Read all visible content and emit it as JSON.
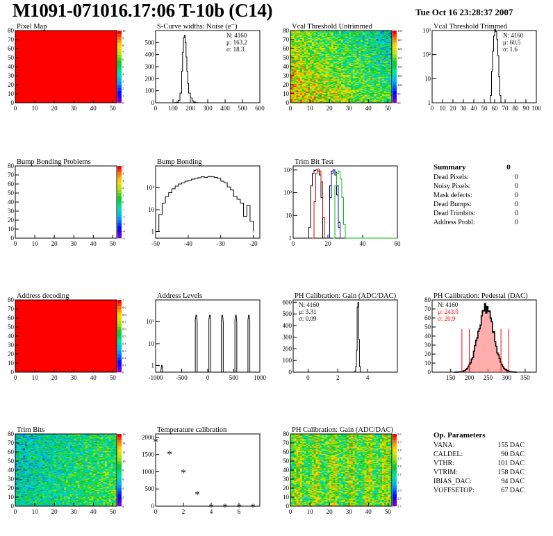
{
  "page": {
    "title": "M1091-071016.17:06 T-10b (C14)",
    "timestamp": "Tue Oct 16 23:28:37 2007"
  },
  "colors": {
    "hot": "#ff0000",
    "trim_black": "#000000",
    "trim_red": "#d40000",
    "trim_blue": "#0000dd",
    "trim_green": "#00c000",
    "pedestal_stats": "#ff0000",
    "pedestal_fill": "#ff6a6a"
  },
  "chart_data": [
    {
      "type": "heatmap",
      "title": "Pixel Map",
      "xlim": [
        0,
        52
      ],
      "ylim": [
        0,
        80
      ],
      "xticks": [
        0,
        10,
        20,
        30,
        40,
        50
      ],
      "yticks": [
        0,
        10,
        20,
        30,
        40,
        50,
        60,
        70,
        80
      ],
      "zlim": [
        0,
        10
      ],
      "zticks": [
        "0",
        "1",
        "2",
        "3",
        "4",
        "5",
        "6",
        "7",
        "8",
        "9",
        "10"
      ],
      "pattern": "uniform",
      "uniform_value": 10
    },
    {
      "type": "bar",
      "title": "S-Curve widths: Noise (e⁻)",
      "xlim": [
        0,
        600
      ],
      "ylim": [
        0,
        600
      ],
      "xticks": [
        0,
        100,
        200,
        300,
        400,
        500,
        600
      ],
      "yticks": [
        0,
        100,
        200,
        300,
        400,
        500
      ],
      "bins": [
        [
          100,
          0
        ],
        [
          110,
          2
        ],
        [
          120,
          6
        ],
        [
          130,
          20
        ],
        [
          140,
          80
        ],
        [
          150,
          260
        ],
        [
          155,
          420
        ],
        [
          160,
          540
        ],
        [
          165,
          560
        ],
        [
          170,
          500
        ],
        [
          175,
          380
        ],
        [
          180,
          260
        ],
        [
          185,
          160
        ],
        [
          190,
          80
        ],
        [
          200,
          40
        ],
        [
          210,
          15
        ],
        [
          220,
          6
        ],
        [
          230,
          2
        ],
        [
          240,
          0
        ]
      ],
      "stats": [
        "N: 4160",
        "μ: 163.2",
        "σ: 18.3"
      ]
    },
    {
      "type": "heatmap",
      "title": "Vcal Threshold Untrimmed",
      "xlim": [
        0,
        52
      ],
      "ylim": [
        0,
        80
      ],
      "xticks": [
        0,
        10,
        20,
        30,
        40,
        50
      ],
      "yticks": [
        0,
        10,
        20,
        30,
        40,
        50,
        60,
        70,
        80
      ],
      "zlim": [
        90,
        130
      ],
      "zticks": [
        "90",
        "95",
        "100",
        "105",
        "110",
        "115",
        "120",
        "125",
        "130"
      ],
      "pattern": "gradient_untrimmed"
    },
    {
      "type": "bar",
      "title": "Vcal Threshold Trimmed",
      "log": true,
      "xlim": [
        0,
        100
      ],
      "ylim": [
        1,
        1000
      ],
      "xticks": [
        0,
        10,
        20,
        30,
        40,
        50,
        60,
        70,
        80,
        90,
        100
      ],
      "yticks": [
        "1",
        "10",
        "10²",
        "10³"
      ],
      "bins": [
        [
          50,
          0
        ],
        [
          51,
          1
        ],
        [
          52,
          0
        ],
        [
          53,
          1
        ],
        [
          54,
          1
        ],
        [
          55,
          0
        ],
        [
          56,
          2
        ],
        [
          57,
          20
        ],
        [
          58,
          140
        ],
        [
          59,
          600
        ],
        [
          60,
          1100
        ],
        [
          61,
          900
        ],
        [
          62,
          420
        ],
        [
          63,
          90
        ],
        [
          64,
          12
        ],
        [
          65,
          2
        ],
        [
          66,
          0
        ]
      ],
      "stats": [
        "N: 4160",
        "μ: 60.5",
        "σ:  1.6"
      ]
    },
    {
      "type": "heatmap",
      "title": "Bump Bonding Problems",
      "xlim": [
        0,
        52
      ],
      "ylim": [
        0,
        80
      ],
      "xticks": [
        0,
        10,
        20,
        30,
        40,
        50
      ],
      "yticks": [
        0,
        10,
        20,
        30,
        40,
        50,
        60,
        70,
        80
      ],
      "zlim": [
        -5,
        5
      ],
      "zticks": [
        "-5",
        "-4",
        "-3",
        "-2",
        "-1",
        "0",
        "1",
        "2",
        "3",
        "4",
        "5"
      ],
      "pattern": "empty"
    },
    {
      "type": "bar",
      "title": "Bump Bonding",
      "log": true,
      "xlim": [
        -50,
        -18
      ],
      "ylim": [
        0.5,
        1000
      ],
      "xticks": [
        -50,
        -40,
        -30,
        -20
      ],
      "yticks": [
        "1",
        "10",
        "10²"
      ],
      "bins": [
        [
          -50,
          1
        ],
        [
          -49,
          6
        ],
        [
          -48,
          20
        ],
        [
          -47,
          40
        ],
        [
          -46,
          60
        ],
        [
          -45,
          90
        ],
        [
          -44,
          120
        ],
        [
          -43,
          150
        ],
        [
          -42,
          170
        ],
        [
          -41,
          200
        ],
        [
          -40,
          220
        ],
        [
          -39,
          250
        ],
        [
          -38,
          270
        ],
        [
          -37,
          290
        ],
        [
          -36,
          320
        ],
        [
          -35,
          300
        ],
        [
          -34,
          330
        ],
        [
          -33,
          320
        ],
        [
          -32,
          300
        ],
        [
          -31,
          270
        ],
        [
          -30,
          200
        ],
        [
          -29,
          170
        ],
        [
          -28,
          110
        ],
        [
          -27,
          80
        ],
        [
          -26,
          40
        ],
        [
          -25,
          30
        ],
        [
          -24,
          20
        ],
        [
          -23,
          5
        ],
        [
          -22,
          16
        ],
        [
          -21,
          3
        ],
        [
          -20,
          1
        ]
      ]
    },
    {
      "type": "line",
      "title": "Trim Bit Test",
      "log": true,
      "xlim": [
        0,
        60
      ],
      "ylim": [
        1,
        1500
      ],
      "xticks": [
        0,
        20,
        40,
        60
      ],
      "yticks": [
        "1",
        "10",
        "10²",
        "10³"
      ],
      "series": [
        {
          "color": "#000000",
          "bins": [
            [
              8,
              0
            ],
            [
              9,
              3
            ],
            [
              10,
              200
            ],
            [
              11,
              700
            ],
            [
              12,
              950
            ],
            [
              13,
              1000
            ],
            [
              14,
              900
            ],
            [
              15,
              600
            ],
            [
              16,
              60
            ],
            [
              17,
              0
            ],
            [
              20,
              0
            ],
            [
              21,
              200
            ],
            [
              22,
              900
            ],
            [
              23,
              1000
            ],
            [
              24,
              600
            ],
            [
              25,
              80
            ],
            [
              26,
              5
            ],
            [
              27,
              0
            ]
          ]
        },
        {
          "color": "#d40000",
          "bins": [
            [
              11,
              0
            ],
            [
              12,
              40
            ],
            [
              13,
              700
            ],
            [
              14,
              1100
            ],
            [
              15,
              900
            ],
            [
              16,
              300
            ],
            [
              17,
              8
            ],
            [
              18,
              0
            ]
          ]
        },
        {
          "color": "#0000dd",
          "bins": [
            [
              20,
              0
            ],
            [
              21,
              60
            ],
            [
              22,
              700
            ],
            [
              23,
              1000
            ],
            [
              24,
              800
            ],
            [
              25,
              200
            ],
            [
              26,
              3
            ],
            [
              27,
              0
            ]
          ]
        },
        {
          "color": "#00c000",
          "bins": [
            [
              23,
              0
            ],
            [
              24,
              200
            ],
            [
              25,
              700
            ],
            [
              26,
              900
            ],
            [
              27,
              400
            ],
            [
              28,
              60
            ],
            [
              29,
              4
            ],
            [
              30,
              0
            ],
            [
              60,
              0
            ]
          ]
        }
      ]
    },
    {
      "type": "table",
      "title": "Summary",
      "total": "0",
      "rows": [
        {
          "label": "Dead Pixels:",
          "value": "0"
        },
        {
          "label": "Noisy Pixels:",
          "value": "0"
        },
        {
          "label": "Mask defects:",
          "value": "0"
        },
        {
          "label": "Dead Bumps:",
          "value": "0"
        },
        {
          "label": "Dead Trimbits:",
          "value": "0"
        },
        {
          "label": "Address Probl:",
          "value": "0"
        }
      ]
    },
    {
      "type": "heatmap",
      "title": "Address decoding",
      "xlim": [
        0,
        52
      ],
      "ylim": [
        0,
        80
      ],
      "xticks": [
        0,
        10,
        20,
        30,
        40,
        50
      ],
      "yticks": [
        0,
        10,
        20,
        30,
        40,
        50,
        60,
        70,
        80
      ],
      "zlim": [
        0,
        1
      ],
      "zticks": [
        "0",
        "0.1",
        "0.2",
        "0.3",
        "0.4",
        "0.5",
        "0.6",
        "0.7",
        "0.8",
        "0.9",
        "1"
      ],
      "pattern": "uniform",
      "uniform_value": 1
    },
    {
      "type": "bar",
      "title": "Address Levels",
      "log": true,
      "xlim": [
        -1000,
        1000
      ],
      "ylim": [
        0.5,
        1000
      ],
      "xticks": [
        -1000,
        -500,
        0,
        500,
        1000
      ],
      "yticks": [
        "1",
        "10",
        "10²"
      ],
      "peaks": [
        {
          "c": -880,
          "h": 1
        },
        {
          "c": -220,
          "h": 200
        },
        {
          "c": 40,
          "h": 200
        },
        {
          "c": 280,
          "h": 200
        },
        {
          "c": 540,
          "h": 200
        },
        {
          "c": 790,
          "h": 200
        }
      ]
    },
    {
      "type": "bar",
      "title": "PH Calibration: Gain (ADC/DAC)",
      "xlim": [
        -1,
        6
      ],
      "ylim": [
        0,
        620
      ],
      "xticks": [
        0,
        2,
        4
      ],
      "yticks": [
        0,
        100,
        200,
        300,
        400,
        500,
        600
      ],
      "bins": [
        [
          3.0,
          0
        ],
        [
          3.1,
          1
        ],
        [
          3.15,
          10
        ],
        [
          3.2,
          50
        ],
        [
          3.25,
          190
        ],
        [
          3.3,
          560
        ],
        [
          3.35,
          600
        ],
        [
          3.4,
          280
        ],
        [
          3.45,
          50
        ],
        [
          3.5,
          2
        ],
        [
          3.55,
          0
        ]
      ],
      "stats": [
        "N: 4160",
        "μ: 3.31",
        "σ: 0.09"
      ]
    },
    {
      "type": "bar",
      "title": "PH Calibration: Pedestal (DAC)",
      "xlim": [
        100,
        380
      ],
      "ylim": [
        0,
        80
      ],
      "xticks": [
        150,
        200,
        250,
        300,
        350
      ],
      "yticks": [
        0,
        10,
        20,
        30,
        40,
        50,
        60,
        70,
        80
      ],
      "gauss": {
        "mu": 243,
        "sigma": 20.9,
        "peak": 71
      },
      "markers": [
        180,
        200,
        285,
        306
      ],
      "stats": [
        "N: 4160",
        "μ: 243.0",
        "σ: 20.9"
      ]
    },
    {
      "type": "heatmap",
      "title": "Trim Bits",
      "xlim": [
        0,
        52
      ],
      "ylim": [
        0,
        80
      ],
      "xticks": [
        0,
        10,
        20,
        30,
        40,
        50
      ],
      "yticks": [
        0,
        10,
        20,
        30,
        40,
        50,
        60,
        70,
        80
      ],
      "zlim": [
        0,
        16
      ],
      "zticks": [
        "0",
        "2",
        "4",
        "6",
        "8",
        "10",
        "12",
        "14",
        "16"
      ],
      "pattern": "gradient_trim"
    },
    {
      "type": "scatter",
      "title": "Temperature calibration",
      "xlim": [
        0,
        7.5
      ],
      "ylim": [
        0,
        2100
      ],
      "xticks": [
        0,
        2,
        4,
        6
      ],
      "yticks": [
        0,
        500,
        1000,
        1500,
        2000
      ],
      "x": [
        0,
        1,
        2,
        3,
        4,
        5,
        6,
        7
      ],
      "y": [
        1900,
        1530,
        1000,
        360,
        0,
        0,
        0,
        0
      ]
    },
    {
      "type": "heatmap",
      "title": "PH Calibration: Gain (ADC/DAC)",
      "xlim": [
        0,
        52
      ],
      "ylim": [
        0,
        80
      ],
      "xticks": [
        0,
        10,
        20,
        30,
        40,
        50
      ],
      "yticks": [
        0,
        10,
        20,
        30,
        40,
        50,
        60,
        70,
        80
      ],
      "zlim": [
        2.7,
        3.6
      ],
      "zticks": [
        "2.7",
        "2.8",
        "2.9",
        "3",
        "3.1",
        "3.2",
        "3.3",
        "3.4",
        "3.5",
        "3.6"
      ],
      "pattern": "stripes_gain"
    },
    {
      "type": "table",
      "title": "Op. Parameters",
      "rows": [
        {
          "label": "VANA:",
          "value": "155 DAC"
        },
        {
          "label": "CALDEL:",
          "value": "90 DAC"
        },
        {
          "label": "VTHR:",
          "value": "101 DAC"
        },
        {
          "label": "VTRIM:",
          "value": "158 DAC"
        },
        {
          "label": "IBIAS_DAC:",
          "value": "94 DAC"
        },
        {
          "label": "VOFFSETOP:",
          "value": "67 DAC"
        }
      ]
    }
  ]
}
